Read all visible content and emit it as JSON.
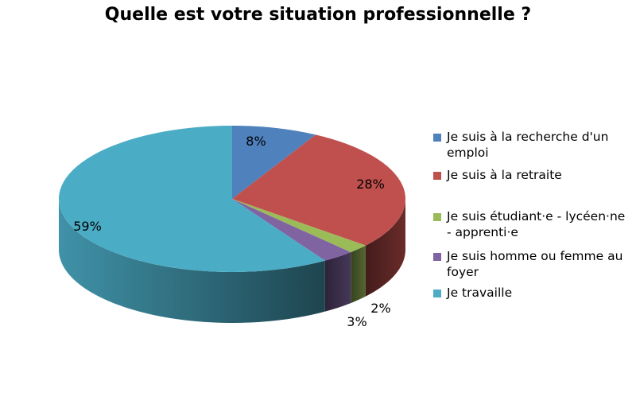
{
  "chart_data": {
    "type": "pie",
    "title": "Quelle est votre situation professionnelle ?",
    "slices": [
      {
        "label": "Je suis à la recherche d'un emploi",
        "value": 8,
        "display": "8%",
        "color": "#4F81BD"
      },
      {
        "label": "Je suis à la retraite",
        "value": 28,
        "display": "28%",
        "color": "#C0504D"
      },
      {
        "label": "Je suis étudiant·e - lycéen·ne - apprenti·e",
        "value": 2,
        "display": "2%",
        "color": "#9BBB59"
      },
      {
        "label": "Je suis homme ou femme au foyer",
        "value": 3,
        "display": "3%",
        "color": "#8064A2"
      },
      {
        "label": "Je travaille",
        "value": 59,
        "display": "59%",
        "color": "#4BACC6"
      }
    ],
    "legend": "right",
    "style": "3d"
  }
}
